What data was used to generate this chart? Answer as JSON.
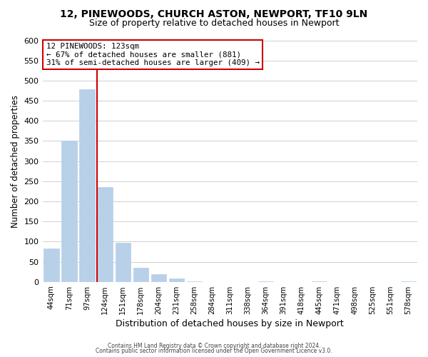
{
  "title_line1": "12, PINEWOODS, CHURCH ASTON, NEWPORT, TF10 9LN",
  "title_line2": "Size of property relative to detached houses in Newport",
  "xlabel": "Distribution of detached houses by size in Newport",
  "ylabel": "Number of detached properties",
  "bar_labels": [
    "44sqm",
    "71sqm",
    "97sqm",
    "124sqm",
    "151sqm",
    "178sqm",
    "204sqm",
    "231sqm",
    "258sqm",
    "284sqm",
    "311sqm",
    "338sqm",
    "364sqm",
    "391sqm",
    "418sqm",
    "445sqm",
    "471sqm",
    "498sqm",
    "525sqm",
    "551sqm",
    "578sqm"
  ],
  "bar_values": [
    83,
    350,
    478,
    236,
    97,
    35,
    19,
    8,
    1,
    0,
    0,
    0,
    1,
    0,
    0,
    1,
    0,
    0,
    0,
    0,
    1
  ],
  "bar_color": "#b8d0e8",
  "property_line_color": "#cc0000",
  "ylim": [
    0,
    600
  ],
  "yticks": [
    0,
    50,
    100,
    150,
    200,
    250,
    300,
    350,
    400,
    450,
    500,
    550,
    600
  ],
  "annotation_title": "12 PINEWOODS: 123sqm",
  "annotation_line1": "← 67% of detached houses are smaller (881)",
  "annotation_line2": "31% of semi-detached houses are larger (409) →",
  "annotation_box_color": "#ffffff",
  "annotation_box_edge": "#cc0000",
  "footer_line1": "Contains HM Land Registry data © Crown copyright and database right 2024.",
  "footer_line2": "Contains public sector information licensed under the Open Government Licence v3.0.",
  "background_color": "#ffffff",
  "grid_color": "#d0d0d0"
}
